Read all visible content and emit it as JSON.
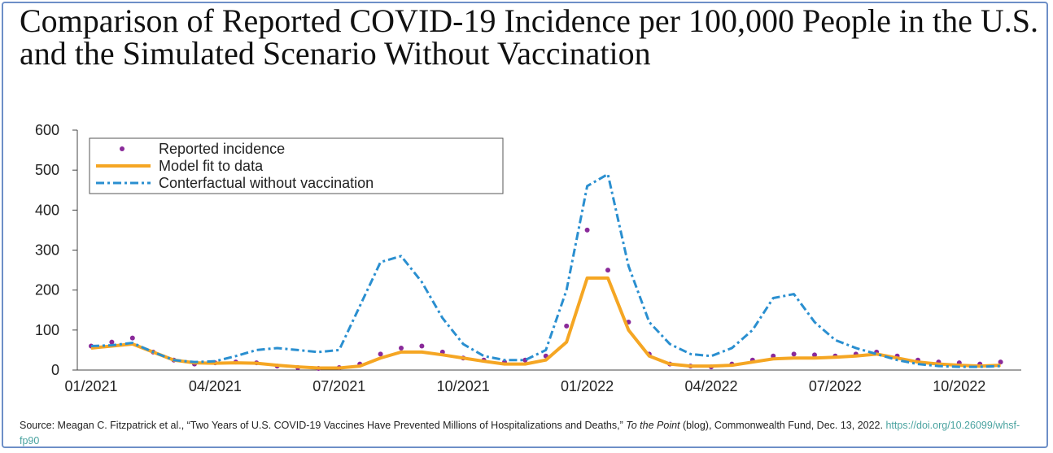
{
  "chart_data": {
    "type": "line",
    "title": "Comparison of Reported COVID-19 Incidence per 100,000 People in the U.S. and the Simulated Scenario Without Vaccination",
    "categories": [
      "01/2021",
      null,
      null,
      null,
      null,
      null,
      "04/2021",
      null,
      null,
      null,
      null,
      null,
      "07/2021",
      null,
      null,
      null,
      null,
      null,
      "10/2021",
      null,
      null,
      null,
      null,
      null,
      "01/2022",
      null,
      null,
      null,
      null,
      null,
      "04/2022",
      null,
      null,
      null,
      null,
      null,
      "07/2022",
      null,
      null,
      null,
      null,
      null,
      "10/2022",
      null,
      null
    ],
    "series": [
      {
        "name": "Reported incidence",
        "color": "#8a2a9a",
        "kind": "scatter",
        "values": [
          60,
          70,
          80,
          45,
          25,
          15,
          18,
          20,
          18,
          10,
          6,
          4,
          6,
          15,
          40,
          55,
          60,
          45,
          30,
          25,
          20,
          25,
          35,
          110,
          350,
          250,
          120,
          40,
          15,
          10,
          8,
          15,
          25,
          35,
          40,
          38,
          35,
          40,
          45,
          35,
          25,
          20,
          18,
          15,
          20
        ]
      },
      {
        "name": "Model fit to data",
        "color": "#f5a623",
        "kind": "line",
        "dashed": false,
        "values": [
          55,
          60,
          65,
          45,
          25,
          18,
          17,
          18,
          17,
          12,
          8,
          5,
          5,
          10,
          30,
          45,
          45,
          38,
          30,
          22,
          15,
          15,
          25,
          70,
          230,
          230,
          100,
          35,
          15,
          10,
          10,
          12,
          20,
          28,
          30,
          30,
          32,
          35,
          40,
          30,
          20,
          15,
          12,
          10,
          12
        ]
      },
      {
        "name": "Conterfactual without vaccination",
        "color": "#2a8fd0",
        "kind": "line",
        "dashed": true,
        "values": [
          60,
          62,
          68,
          45,
          25,
          20,
          22,
          35,
          50,
          55,
          50,
          45,
          50,
          160,
          270,
          285,
          220,
          130,
          65,
          35,
          25,
          25,
          50,
          200,
          460,
          490,
          260,
          120,
          65,
          40,
          35,
          55,
          100,
          180,
          190,
          120,
          75,
          55,
          40,
          25,
          15,
          10,
          8,
          8,
          10
        ]
      }
    ],
    "ylim": [
      0,
      600
    ],
    "yticks": [
      0,
      100,
      200,
      300,
      400,
      500,
      600
    ],
    "legend": "upper left",
    "source": {
      "before": "Source: Meagan C. Fitzpatrick et al., “Two Years of U.S. COVID-19 Vaccines Have Prevented Millions of Hospitalizations and Deaths,”",
      "italic": "To the Point",
      "after": "(blog), Commonwealth Fund, Dec. 13, 2022.",
      "link": "https://doi.org/10.26099/whsf-fp90"
    }
  }
}
